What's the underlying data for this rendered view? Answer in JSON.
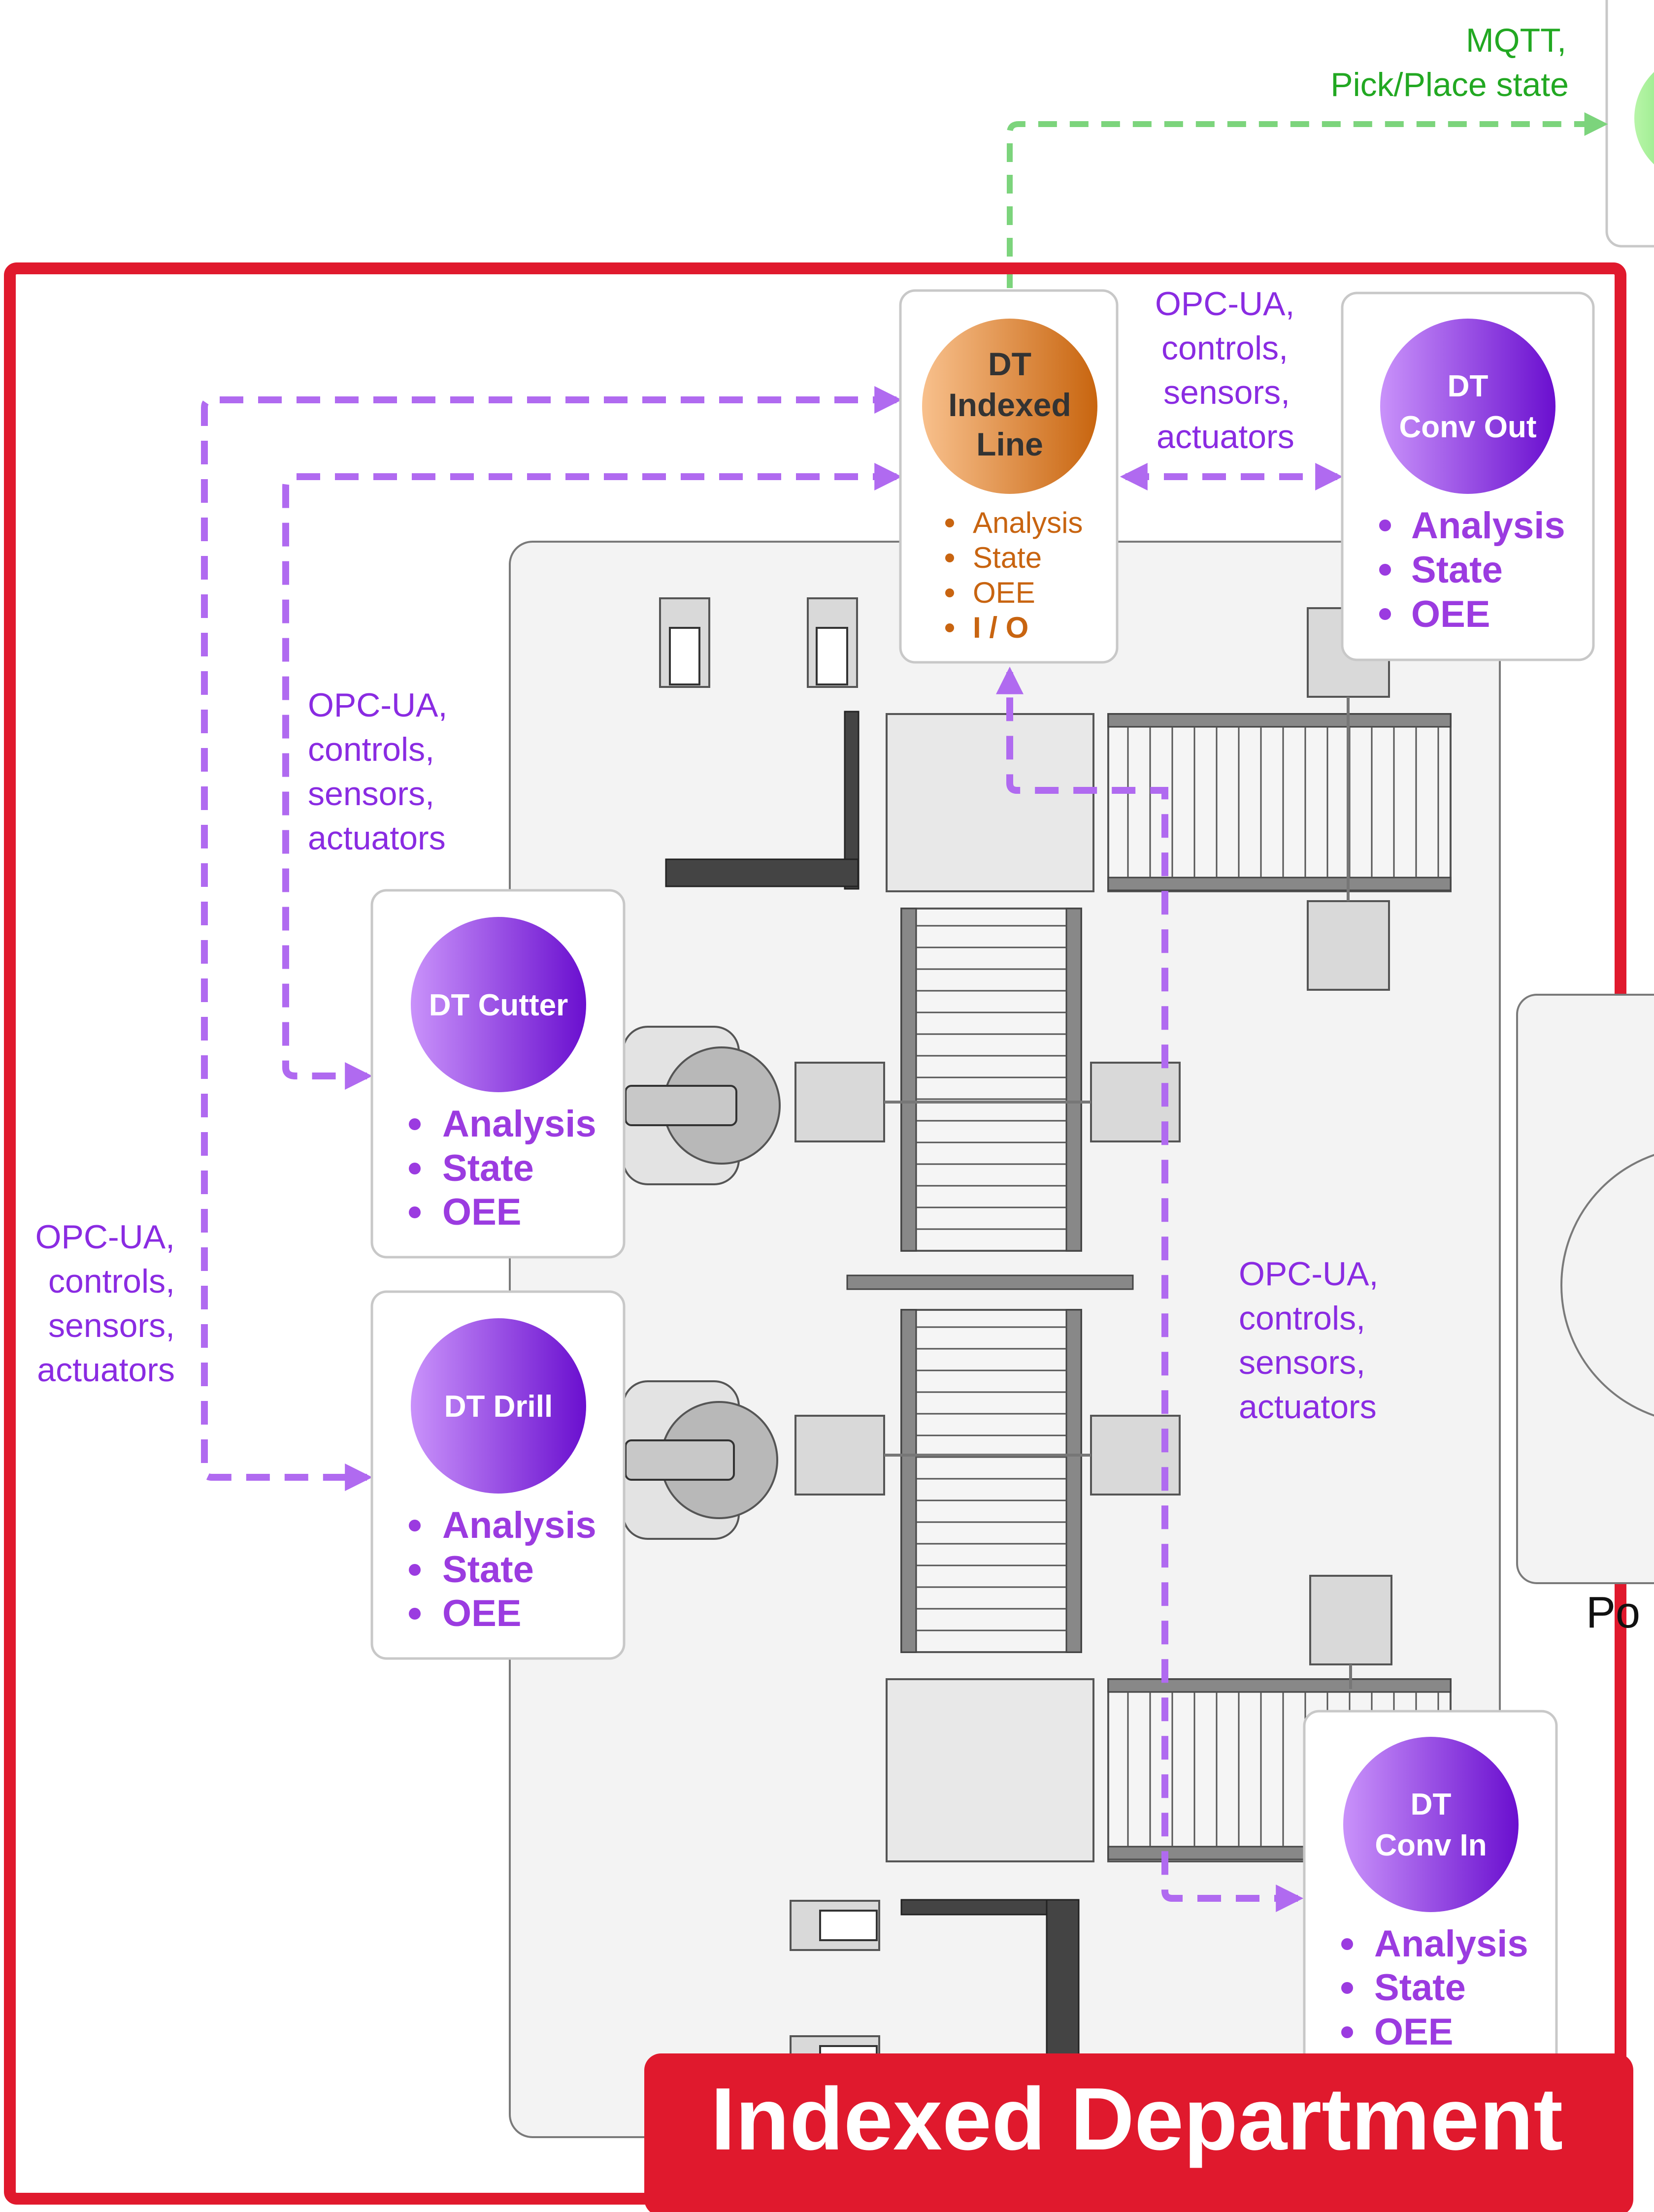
{
  "mqtt_label": {
    "line1": "MQTT,",
    "line2": "Pick/Place state"
  },
  "opcua_label": {
    "line1": "OPC-UA,",
    "line2": "controls,",
    "line3": "sensors,",
    "line4": "actuators"
  },
  "dt_indexed_line": {
    "title_lines": [
      "DT",
      "Indexed",
      "Line"
    ],
    "items": [
      "Analysis",
      "State",
      "OEE",
      "I / O"
    ],
    "color_start": "#f5b27a",
    "color_end": "#c8650f"
  },
  "dt_conv_out": {
    "title_lines": [
      "DT",
      "Conv Out"
    ],
    "items": [
      "Analysis",
      "State",
      "OEE"
    ]
  },
  "dt_cutter": {
    "title_lines": [
      "DT Cutter"
    ],
    "items": [
      "Analysis",
      "State",
      "OEE"
    ]
  },
  "dt_drill": {
    "title_lines": [
      "DT Drill"
    ],
    "items": [
      "Analysis",
      "State",
      "OEE"
    ]
  },
  "dt_conv_in": {
    "title_lines": [
      "DT",
      "Conv In"
    ],
    "items": [
      "Analysis",
      "State",
      "OEE"
    ]
  },
  "department_label": "Indexed Department",
  "partial_label": "Po",
  "colors": {
    "department_border": "#e0192d",
    "purple_accent": "#8a2be2",
    "purple_circle_start": "#c38bf7",
    "purple_circle_end": "#6a0fcf",
    "green_accent": "#22a822",
    "connector_purple": "#b06af0",
    "connector_green": "#7cd47c"
  }
}
